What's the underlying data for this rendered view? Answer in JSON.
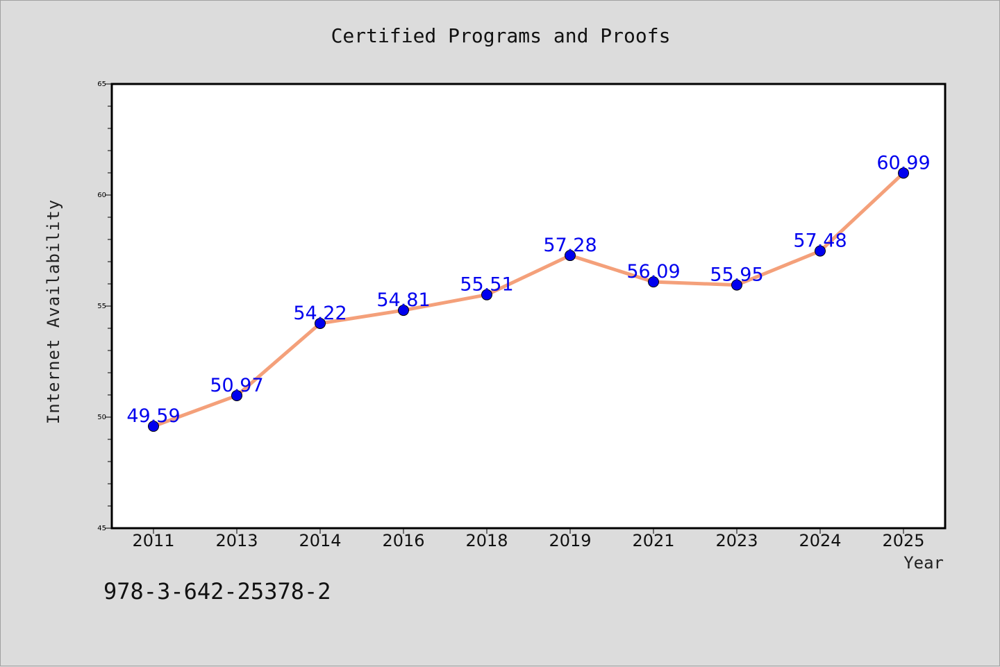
{
  "chart_data": {
    "type": "line",
    "title": "Certified Programs and Proofs",
    "xlabel": "Year",
    "ylabel": "Internet Availability",
    "categories": [
      "2011",
      "2013",
      "2014",
      "2016",
      "2018",
      "2019",
      "2021",
      "2023",
      "2024",
      "2025"
    ],
    "series": [
      {
        "values": [
          49.59,
          50.97,
          54.22,
          54.81,
          55.51,
          57.28,
          56.09,
          55.95,
          57.48,
          60.99
        ],
        "labels": [
          "49.59",
          "50.97",
          "54.22",
          "54.81",
          "55.51",
          "57.28",
          "56.09",
          "55.95",
          "57.48",
          "60.99"
        ]
      }
    ],
    "ylim": [
      45,
      65
    ],
    "yticks": [
      "45",
      "50",
      "55",
      "60",
      "65"
    ],
    "grid": false,
    "legend": "none"
  },
  "annotation": "978-3-642-25378-2",
  "colors": {
    "background": "#dcdcdc",
    "plot_area": "#ffffff",
    "line": "#f4a07a",
    "marker": "#0000ee",
    "data_label": "#0000ee"
  }
}
